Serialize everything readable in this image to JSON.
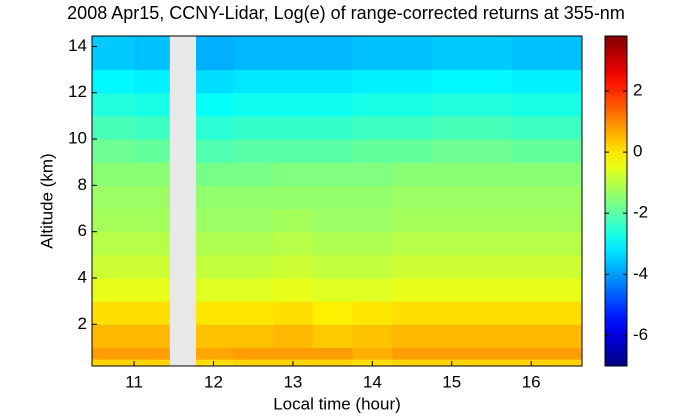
{
  "chart_data": {
    "type": "heatmap",
    "title": "2008 Apr15, CCNY-Lidar, Log(e) of range-corrected returns at 355-nm",
    "x_label": "Local time (hour)",
    "y_label": "Altitude (km)",
    "colormap": "jet",
    "missing_color": "#e8e8e8",
    "x_edges": [
      10.47,
      11.0,
      11.45,
      11.78,
      12.25,
      12.75,
      13.25,
      13.75,
      14.25,
      14.75,
      15.25,
      15.75,
      16.25,
      16.64
    ],
    "y_edges": [
      0.2,
      0.5,
      1,
      2,
      3,
      4,
      5,
      6,
      7,
      8,
      9,
      10,
      11,
      12,
      13,
      14.45
    ],
    "z": [
      [
        0.2,
        0.2,
        null,
        0.1,
        0.2,
        0.2,
        0.2,
        0.1,
        0.2,
        0.2,
        0.2,
        0.2,
        0.2
      ],
      [
        0.8,
        0.8,
        null,
        0.7,
        0.8,
        0.8,
        0.8,
        0.6,
        0.8,
        0.8,
        0.8,
        0.8,
        0.8
      ],
      [
        0.5,
        0.5,
        null,
        0.4,
        0.4,
        0.5,
        0.3,
        0.4,
        0.5,
        0.5,
        0.5,
        0.5,
        0.5
      ],
      [
        0.1,
        0.1,
        null,
        0,
        0,
        0.1,
        -0.1,
        0,
        0.1,
        0.1,
        0.1,
        0.1,
        0.1
      ],
      [
        -0.5,
        -0.5,
        null,
        -0.6,
        -0.6,
        -0.5,
        -0.6,
        -0.6,
        -0.5,
        -0.5,
        -0.5,
        -0.5,
        -0.5
      ],
      [
        -0.8,
        -0.8,
        null,
        -0.9,
        -0.9,
        -0.8,
        -0.9,
        -0.9,
        -0.8,
        -0.8,
        -0.8,
        -0.8,
        -0.8
      ],
      [
        -1.0,
        -1.0,
        null,
        -1.1,
        -1.1,
        -1.0,
        -1.1,
        -1.1,
        -1.0,
        -1.0,
        -1.0,
        -1.0,
        -1.0
      ],
      [
        -1.2,
        -1.2,
        null,
        -1.3,
        -1.3,
        -1.2,
        -1.3,
        -1.3,
        -1.2,
        -1.2,
        -1.2,
        -1.2,
        -1.2
      ],
      [
        -1.3,
        -1.3,
        null,
        -1.4,
        -1.4,
        -1.4,
        -1.4,
        -1.4,
        -1.3,
        -1.3,
        -1.3,
        -1.3,
        -1.3
      ],
      [
        -1.5,
        -1.5,
        null,
        -1.7,
        -1.7,
        -1.6,
        -1.6,
        -1.6,
        -1.5,
        -1.5,
        -1.5,
        -1.5,
        -1.5
      ],
      [
        -1.8,
        -1.9,
        null,
        -2.1,
        -2.0,
        -2.0,
        -2.0,
        -1.9,
        -1.9,
        -1.8,
        -1.8,
        -1.9,
        -1.9
      ],
      [
        -2.2,
        -2.3,
        null,
        -2.5,
        -2.4,
        -2.4,
        -2.4,
        -2.3,
        -2.3,
        -2.2,
        -2.2,
        -2.3,
        -2.3
      ],
      [
        -2.6,
        -2.7,
        null,
        -2.9,
        -2.8,
        -2.8,
        -2.8,
        -2.7,
        -2.7,
        -2.6,
        -2.6,
        -2.7,
        -2.7
      ],
      [
        -3.0,
        -3.1,
        null,
        -3.3,
        -3.2,
        -3.2,
        -3.2,
        -3.1,
        -3.1,
        -3.0,
        -3.0,
        -3.1,
        -3.1
      ],
      [
        -3.5,
        -3.6,
        null,
        -3.8,
        -3.7,
        -3.7,
        -3.7,
        -3.6,
        -3.6,
        -3.5,
        -3.5,
        -3.6,
        -3.6
      ]
    ],
    "xlim": [
      10.47,
      16.64
    ],
    "ylim": [
      0.2,
      14.45
    ],
    "xticks": [
      11,
      12,
      13,
      14,
      15,
      16
    ],
    "yticks": [
      2,
      4,
      6,
      8,
      10,
      12,
      14
    ],
    "clim": [
      -7,
      3.8
    ],
    "cticks": [
      -6,
      -4,
      -2,
      0,
      2
    ]
  }
}
